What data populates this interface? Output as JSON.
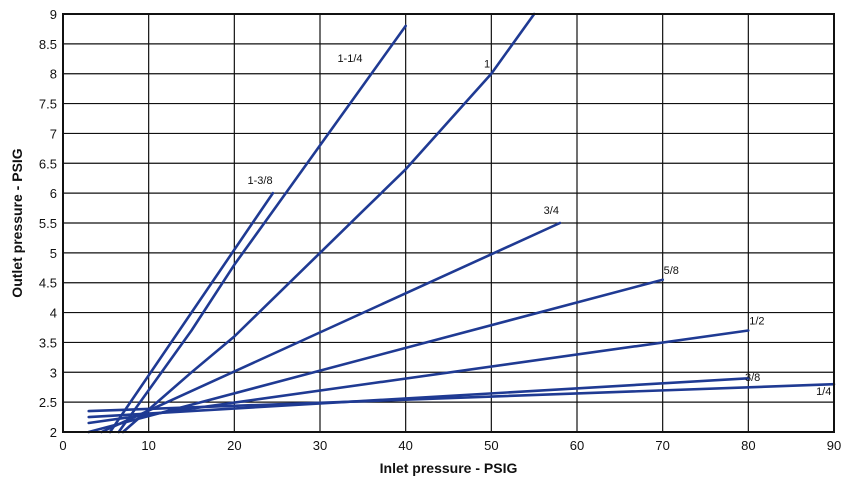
{
  "chart_data": {
    "type": "line",
    "title": "",
    "xlabel": "Inlet pressure - PSIG",
    "ylabel": "Outlet pressure - PSIG",
    "xlim": [
      0,
      90
    ],
    "ylim": [
      2,
      9
    ],
    "x_ticks": [
      "0",
      "10",
      "20",
      "30",
      "40",
      "50",
      "60",
      "70",
      "80",
      "90"
    ],
    "y_ticks": [
      "2",
      "2.5",
      "3",
      "3.5",
      "4",
      "4.5",
      "5",
      "5.5",
      "6",
      "6.5",
      "7",
      "7.5",
      "8",
      "8.5",
      "9"
    ],
    "grid": true,
    "line_color": "#1f3a93",
    "series": [
      {
        "name": "1-3/8",
        "x": [
          5.5,
          24.5
        ],
        "y": [
          2.0,
          6.0
        ]
      },
      {
        "name": "1-1/4",
        "x": [
          6.5,
          15,
          20,
          25,
          30,
          35,
          40
        ],
        "y": [
          2.0,
          3.7,
          4.8,
          5.8,
          6.8,
          7.8,
          8.8
        ]
      },
      {
        "name": "1",
        "x": [
          7,
          15,
          20,
          25,
          30,
          35,
          40,
          45,
          50,
          55
        ],
        "y": [
          2.0,
          3.0,
          3.6,
          4.3,
          5.0,
          5.7,
          6.4,
          7.2,
          8.0,
          9.0
        ]
      },
      {
        "name": "3/4",
        "x": [
          4.5,
          58
        ],
        "y": [
          2.0,
          5.5
        ]
      },
      {
        "name": "5/8",
        "x": [
          3,
          70
        ],
        "y": [
          2.0,
          4.55
        ]
      },
      {
        "name": "1/2",
        "x": [
          3,
          80
        ],
        "y": [
          2.15,
          3.7
        ]
      },
      {
        "name": "3/8",
        "x": [
          3,
          80
        ],
        "y": [
          2.25,
          2.9
        ]
      },
      {
        "name": "1/4",
        "x": [
          3,
          90
        ],
        "y": [
          2.35,
          2.8
        ]
      }
    ],
    "series_label_positions": [
      {
        "name": "1-3/8",
        "x": 23,
        "y": 6.15
      },
      {
        "name": "1-1/4",
        "x": 33.5,
        "y": 8.2
      },
      {
        "name": "1",
        "x": 49.5,
        "y": 8.1
      },
      {
        "name": "3/4",
        "x": 57,
        "y": 5.65
      },
      {
        "name": "5/8",
        "x": 71,
        "y": 4.65
      },
      {
        "name": "1/2",
        "x": 81,
        "y": 3.8
      },
      {
        "name": "3/8",
        "x": 80.5,
        "y": 2.85
      },
      {
        "name": "1/4",
        "x": 88.8,
        "y": 2.62
      }
    ]
  }
}
